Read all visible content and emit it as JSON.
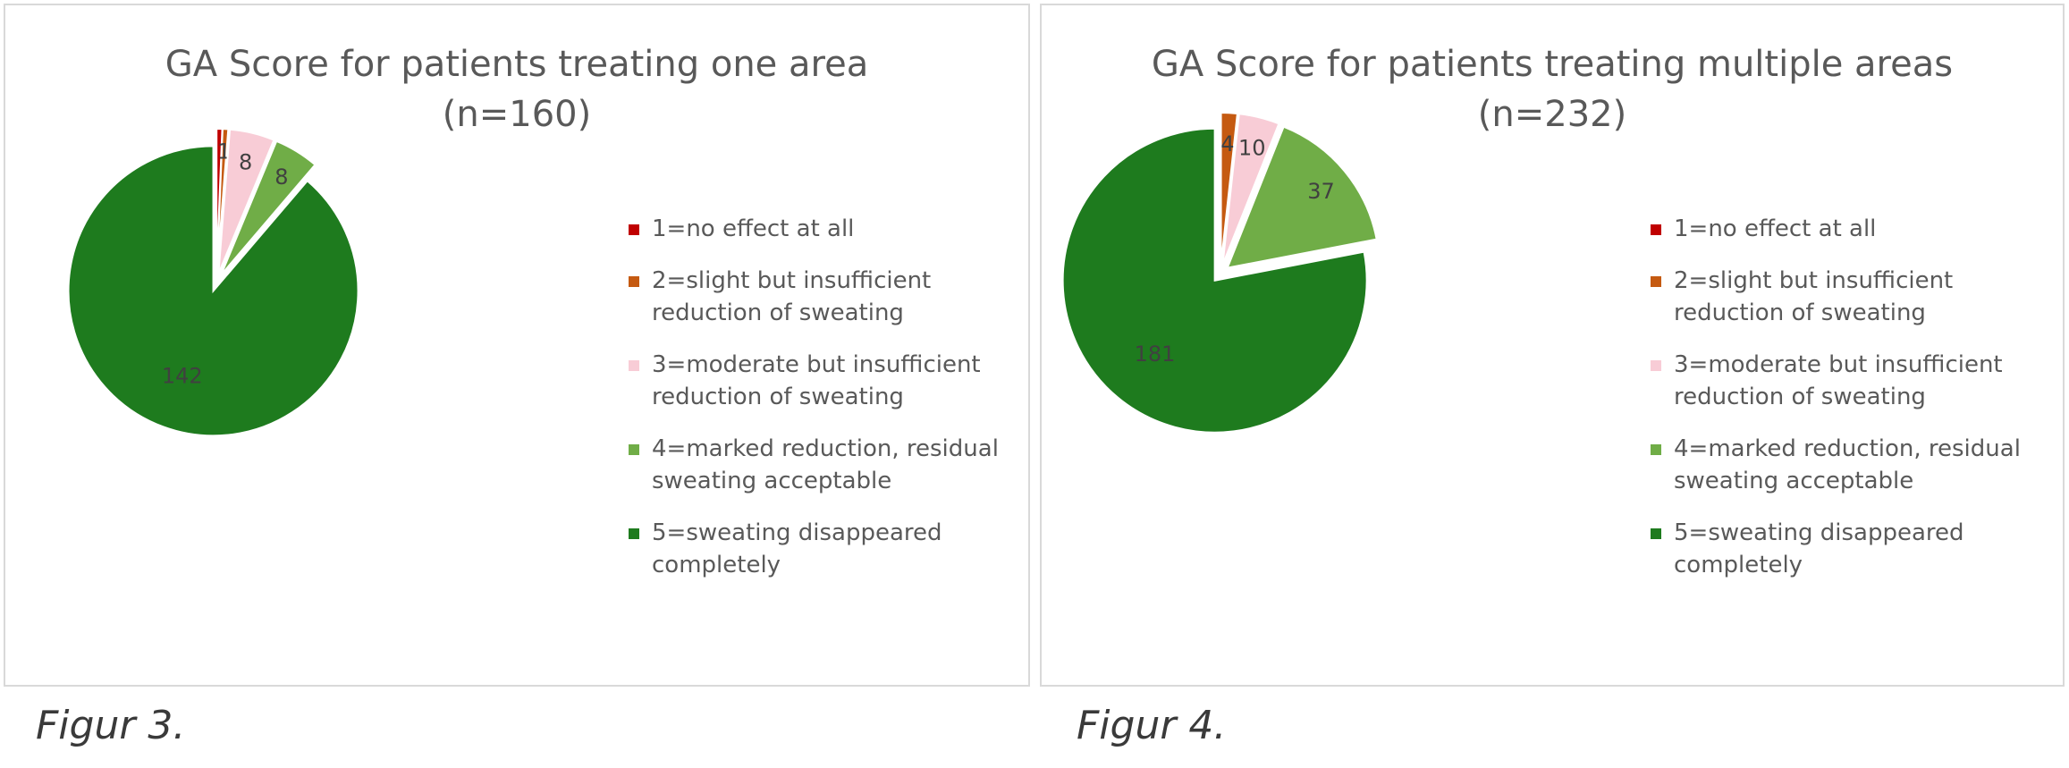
{
  "chart_data": [
    {
      "type": "pie",
      "title": [
        "GA Score for patients treating one area",
        "(n=160)"
      ],
      "categories": [
        "1=no effect at all",
        "2=slight but insufficient reduction of sweating",
        "3=moderate but insufficient reduction of sweating",
        "4=marked reduction, residual sweating acceptable",
        "5=sweating disappeared completely"
      ],
      "values": [
        1,
        1,
        8,
        8,
        142
      ],
      "data_labels": [
        "",
        "1",
        "8",
        "8",
        "142"
      ],
      "exploded": true,
      "legend_position": "right"
    },
    {
      "type": "pie",
      "title": [
        "GA Score for patients treating multiple areas",
        "(n=232)"
      ],
      "categories": [
        "1=no effect at all",
        "2=slight but insufficient reduction of sweating",
        "3=moderate but insufficient reduction of sweating",
        "4=marked reduction, residual sweating acceptable",
        "5=sweating disappeared completely"
      ],
      "values": [
        0,
        4,
        10,
        37,
        181
      ],
      "data_labels": [
        "",
        "4",
        "10",
        "37",
        "181"
      ],
      "exploded": true,
      "legend_position": "right"
    }
  ],
  "colors": [
    "#c00000",
    "#c55a11",
    "#f8ccd6",
    "#70ad47",
    "#1e7b1e"
  ],
  "legend_lines": [
    [
      "1=no effect at all"
    ],
    [
      "2=slight but insufficient",
      "reduction of sweating"
    ],
    [
      "3=moderate but insufficient",
      "reduction of sweating"
    ],
    [
      "4=marked reduction, residual",
      "sweating acceptable"
    ],
    [
      "5=sweating disappeared",
      "completely"
    ]
  ],
  "captions": [
    "Figur 3.",
    "Figur 4."
  ]
}
